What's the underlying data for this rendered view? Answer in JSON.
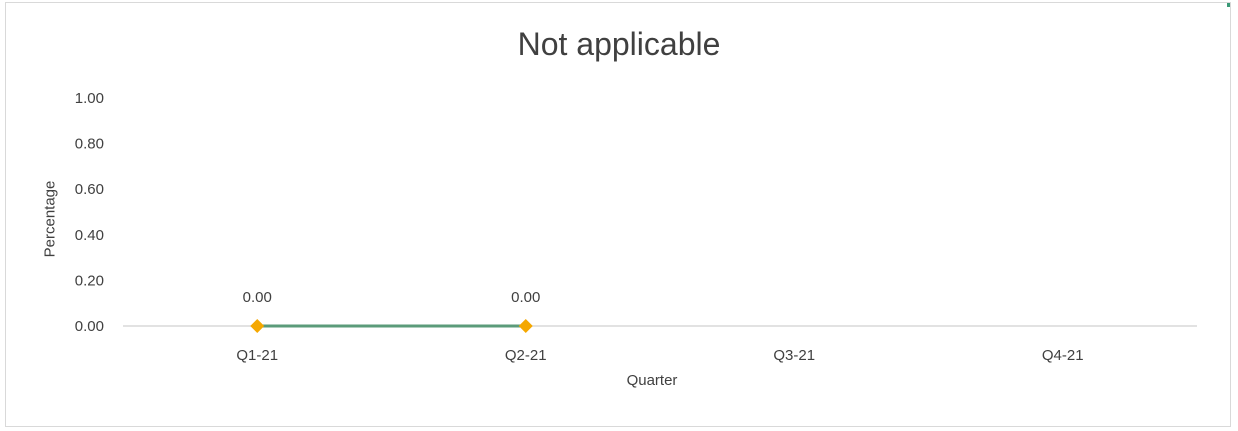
{
  "chart_data": {
    "type": "line",
    "title": "Not applicable",
    "xlabel": "Quarter",
    "ylabel": "Percentage",
    "categories": [
      "Q1-21",
      "Q2-21",
      "Q3-21",
      "Q4-21"
    ],
    "series": [
      {
        "values": [
          0.0,
          0.0,
          null,
          null
        ],
        "line_color": "#5b9b7a",
        "marker": "diamond",
        "marker_color": "#f5a800",
        "data_labels": [
          "0.00",
          "0.00",
          null,
          null
        ]
      }
    ],
    "ylim": [
      0,
      1
    ],
    "y_ticks": [
      "0.00",
      "0.20",
      "0.40",
      "0.60",
      "0.80",
      "1.00"
    ],
    "grid": false,
    "legend": "none"
  },
  "colors": {
    "text": "#404040",
    "axis_line": "#d9d9d9",
    "accent": "#3a9a77"
  }
}
